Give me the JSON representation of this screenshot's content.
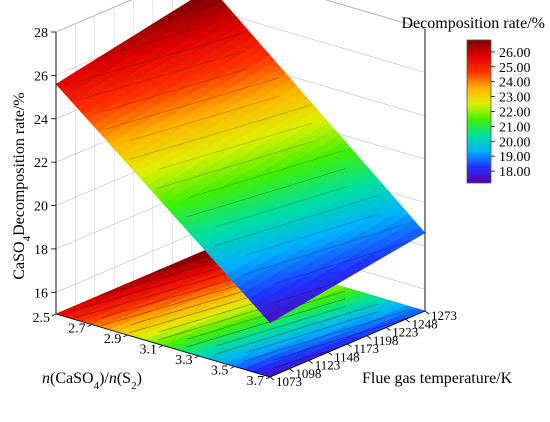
{
  "chart_data": {
    "type": "surface3d",
    "title": "",
    "zlabel_main": "CaSO",
    "zlabel_sub": "4",
    "zlabel_rest": "Decomposition rate/%",
    "xlabel": "Flue gas temperature/K",
    "ylabel_parts": [
      {
        "text": "n",
        "italic": true,
        "sub": false
      },
      {
        "text": "(CaSO",
        "italic": false,
        "sub": false
      },
      {
        "text": "4",
        "italic": false,
        "sub": true
      },
      {
        "text": ")/",
        "italic": false,
        "sub": false
      },
      {
        "text": "n",
        "italic": true,
        "sub": false
      },
      {
        "text": "(S",
        "italic": false,
        "sub": false
      },
      {
        "text": "2",
        "italic": false,
        "sub": true
      },
      {
        "text": ")",
        "italic": false,
        "sub": false
      }
    ],
    "x_ticks": [
      "1073",
      "1098",
      "1123",
      "1148",
      "1173",
      "1198",
      "1223",
      "1248",
      "1273"
    ],
    "x_range": [
      1073,
      1273
    ],
    "y_ticks": [
      "2.5",
      "2.7",
      "2.9",
      "3.1",
      "3.3",
      "3.5",
      "3.7"
    ],
    "y_range": [
      2.5,
      3.7
    ],
    "z_ticks": [
      "16",
      "18",
      "20",
      "22",
      "24",
      "26",
      "28"
    ],
    "z_range": [
      15,
      28
    ],
    "colorbar": {
      "title": "Decomposition rate/%",
      "labels": [
        "26.00",
        "25.00",
        "24.00",
        "23.00",
        "22.00",
        "21.00",
        "20.00",
        "19.00",
        "18.00"
      ],
      "min": 17.2,
      "max": 26.8
    },
    "surface_corners": [
      {
        "temperature": 1073,
        "ratio": 2.5,
        "rate": 25.6
      },
      {
        "temperature": 1273,
        "ratio": 2.5,
        "rate": 27.0
      },
      {
        "temperature": 1073,
        "ratio": 3.7,
        "rate": 17.5
      },
      {
        "temperature": 1273,
        "ratio": 3.7,
        "rate": 18.6
      }
    ],
    "colors": [
      "#5a00a8",
      "#2030ff",
      "#00b0ff",
      "#00e0a0",
      "#40f000",
      "#e0f000",
      "#ffb000",
      "#ff3000",
      "#e00000",
      "#800000"
    ],
    "grid": true
  }
}
